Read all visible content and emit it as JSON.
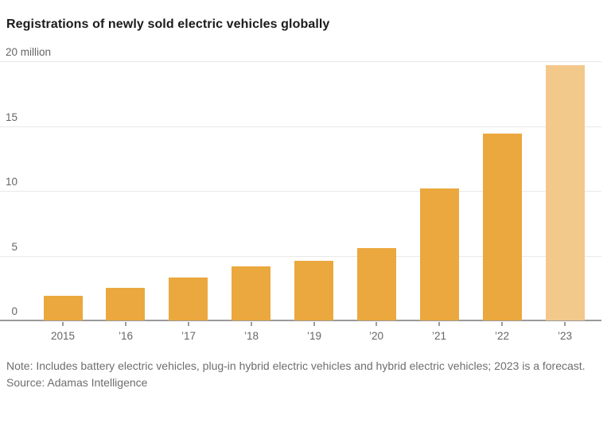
{
  "chart_data": {
    "type": "bar",
    "title": "Registrations of newly sold electric vehicles globally",
    "unit": "million",
    "categories": [
      "2015",
      "’16",
      "’17",
      "’18",
      "’19",
      "’20",
      "’21",
      "’22",
      "’23"
    ],
    "values": [
      1.9,
      2.5,
      3.3,
      4.2,
      4.6,
      5.6,
      10.2,
      14.4,
      19.7
    ],
    "forecast_index": 8,
    "y_ticks": [
      {
        "label": "20 million",
        "value": 20
      },
      {
        "label": "15",
        "value": 15
      },
      {
        "label": "10",
        "value": 10
      },
      {
        "label": "5",
        "value": 5
      },
      {
        "label": "0",
        "value": 0
      }
    ],
    "ylim": [
      0,
      20
    ],
    "grid": true,
    "legend": false,
    "bar_color": "#EBA83E",
    "forecast_bar_color": "#F3C88B",
    "grid_color": "#e9e9e9",
    "axis_color": "#9a9a9a",
    "note": "Note: Includes battery electric vehicles, plug-in hybrid electric vehicles and hybrid electric vehicles; 2023 is a forecast.",
    "source": "Source: Adamas Intelligence"
  }
}
